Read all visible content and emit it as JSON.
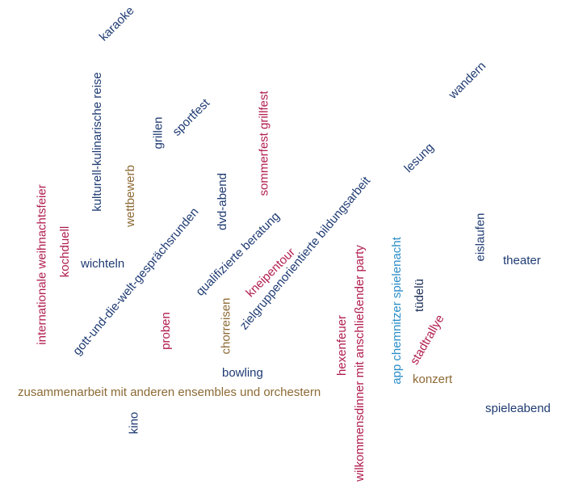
{
  "words": [
    {
      "id": "karaoke",
      "text": "karaoke",
      "color": "#1f3b73"
    },
    {
      "id": "kulturell-kulinarische-reise",
      "text": "kulturell-kulinarische reise",
      "color": "#1f3b73"
    },
    {
      "id": "grillen",
      "text": "grillen",
      "color": "#1f3b73"
    },
    {
      "id": "sportfest",
      "text": "sportfest",
      "color": "#1f3b73"
    },
    {
      "id": "sommerfest-grillfest",
      "text": "sommerfest grillfest",
      "color": "#b01e4f"
    },
    {
      "id": "wandern",
      "text": "wandern",
      "color": "#1f3b73"
    },
    {
      "id": "lesung",
      "text": "lesung",
      "color": "#1f3b73"
    },
    {
      "id": "wettbewerb",
      "text": "wettbewerb",
      "color": "#8c6a35"
    },
    {
      "id": "dvd-abend",
      "text": "dvd-abend",
      "color": "#1f3b73"
    },
    {
      "id": "internationale-weihnachtsfeier",
      "text": "internationale weihnachtsfeier",
      "color": "#b01e4f"
    },
    {
      "id": "kochduell",
      "text": "kochduell",
      "color": "#b01e4f"
    },
    {
      "id": "wichteln",
      "text": "wichteln",
      "color": "#1f3b73"
    },
    {
      "id": "gott-und-die-welt",
      "text": "gott-und-die-welt-gesprächsrunden",
      "color": "#1f3b73"
    },
    {
      "id": "qualifizierte-beratung",
      "text": "qualifizierte beratung",
      "color": "#1f3b73"
    },
    {
      "id": "zielgruppenorientierte-bildungsarbeit",
      "text": "zielgruppenorientierte bildungsarbeit",
      "color": "#1f3b73"
    },
    {
      "id": "kneipentour",
      "text": "kneipentour",
      "color": "#b01e4f"
    },
    {
      "id": "eislaufen",
      "text": "eislaufen",
      "color": "#1f3b73"
    },
    {
      "id": "theater",
      "text": "theater",
      "color": "#1f3b73"
    },
    {
      "id": "proben",
      "text": "proben",
      "color": "#b01e4f"
    },
    {
      "id": "chorreisen",
      "text": "chorreisen",
      "color": "#8c6a35"
    },
    {
      "id": "wilkommensdinner",
      "text": "wilkommensdinner mit anschließender party",
      "color": "#b01e4f"
    },
    {
      "id": "app-chemnitzer-spielenacht",
      "text": "app chemnitzer spielenacht",
      "color": "#2a8dc8"
    },
    {
      "id": "tuedelue",
      "text": "tüdelü",
      "color": "#1a2e55"
    },
    {
      "id": "stadtrallye",
      "text": "stadtrallye",
      "color": "#b01e4f"
    },
    {
      "id": "hexenfeuer",
      "text": "hexenfeuer",
      "color": "#b01e4f"
    },
    {
      "id": "bowling",
      "text": "bowling",
      "color": "#1f3b73"
    },
    {
      "id": "konzert",
      "text": "konzert",
      "color": "#8c6a35"
    },
    {
      "id": "zusammenarbeit",
      "text": "zusammenarbeit mit anderen ensembles und orchestern",
      "color": "#8c6a35"
    },
    {
      "id": "spieleabend",
      "text": "spieleabend",
      "color": "#1f3b73"
    },
    {
      "id": "kino",
      "text": "kino",
      "color": "#1f3b73"
    }
  ]
}
